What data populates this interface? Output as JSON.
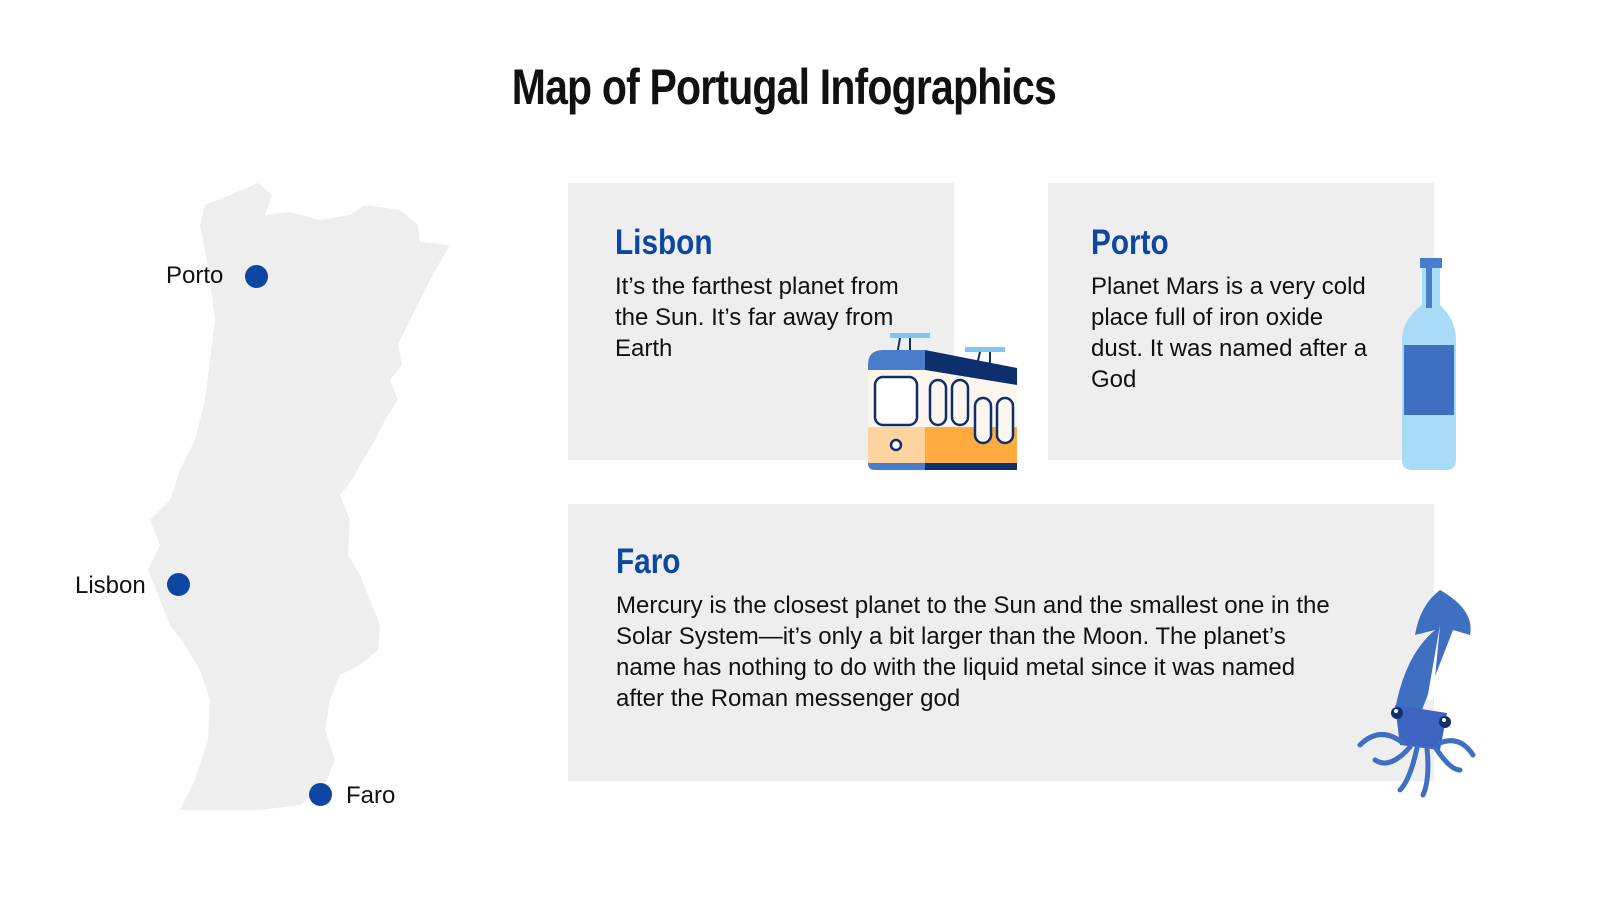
{
  "title": "Map of Portugal Infographics",
  "map": {
    "cities": [
      {
        "label": "Porto"
      },
      {
        "label": "Lisbon"
      },
      {
        "label": "Faro"
      }
    ],
    "dot_color": "#0d47a1",
    "land_color": "#eeeeee"
  },
  "cards": [
    {
      "heading": "Lisbon",
      "text": "It’s the farthest planet from the Sun. It’s far away from Earth",
      "icon": "tram-icon"
    },
    {
      "heading": "Porto",
      "text": "Planet Mars is a very cold place full of iron oxide dust. It was named after a God",
      "icon": "bottle-icon"
    },
    {
      "heading": "Faro",
      "text": "Mercury is the closest planet to the Sun and the smallest one in the Solar System—it’s only a bit larger than the Moon. The planet’s name has nothing to do with the liquid metal since it was named after the Roman messenger god",
      "icon": "squid-icon"
    }
  ],
  "colors": {
    "accent": "#0d47a1",
    "card_bg": "#eeeeee"
  }
}
